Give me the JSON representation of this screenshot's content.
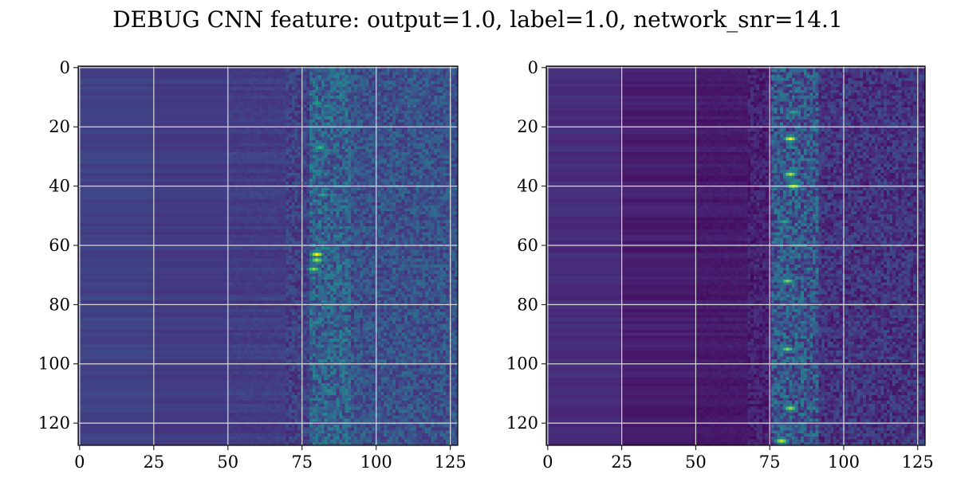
{
  "title": "DEBUG CNN feature: output=1.0, label=1.0, network_snr=14.1",
  "chart_data": [
    {
      "type": "heatmap",
      "title": "",
      "xlabel": "",
      "ylabel": "",
      "xlim": [
        -0.5,
        127.5
      ],
      "ylim": [
        127.5,
        -0.5
      ],
      "xticks": [
        0,
        25,
        50,
        75,
        100,
        125
      ],
      "yticks": [
        0,
        20,
        40,
        60,
        80,
        100,
        120
      ],
      "grid": true,
      "colormap": "viridis",
      "shape": [
        128,
        128
      ],
      "bright_spots": [
        {
          "x": 80,
          "y": 63,
          "value": 1.0
        },
        {
          "x": 80,
          "y": 65,
          "value": 0.85
        },
        {
          "x": 79,
          "y": 68,
          "value": 0.8
        },
        {
          "x": 81,
          "y": 27,
          "value": 0.65
        },
        {
          "x": 82,
          "y": 43,
          "value": 0.6
        },
        {
          "x": 80,
          "y": 12,
          "value": 0.55
        },
        {
          "x": 80,
          "y": 86,
          "value": 0.5
        },
        {
          "x": 84,
          "y": 109,
          "value": 0.5
        }
      ],
      "seed": 11
    },
    {
      "type": "heatmap",
      "title": "",
      "xlabel": "",
      "ylabel": "",
      "xlim": [
        -0.5,
        127.5
      ],
      "ylim": [
        127.5,
        -0.5
      ],
      "xticks": [
        0,
        25,
        50,
        75,
        100,
        125
      ],
      "yticks": [
        0,
        20,
        40,
        60,
        80,
        100,
        120
      ],
      "grid": true,
      "colormap": "viridis",
      "shape": [
        128,
        128
      ],
      "bright_spots": [
        {
          "x": 82,
          "y": 24,
          "value": 1.0
        },
        {
          "x": 82,
          "y": 36,
          "value": 0.9
        },
        {
          "x": 83,
          "y": 40,
          "value": 0.95
        },
        {
          "x": 81,
          "y": 72,
          "value": 0.8
        },
        {
          "x": 81,
          "y": 95,
          "value": 0.8
        },
        {
          "x": 82,
          "y": 115,
          "value": 0.85
        },
        {
          "x": 79,
          "y": 126,
          "value": 0.9
        },
        {
          "x": 80,
          "y": 52,
          "value": 0.6
        },
        {
          "x": 83,
          "y": 15,
          "value": 0.6
        }
      ],
      "seed": 29
    }
  ]
}
